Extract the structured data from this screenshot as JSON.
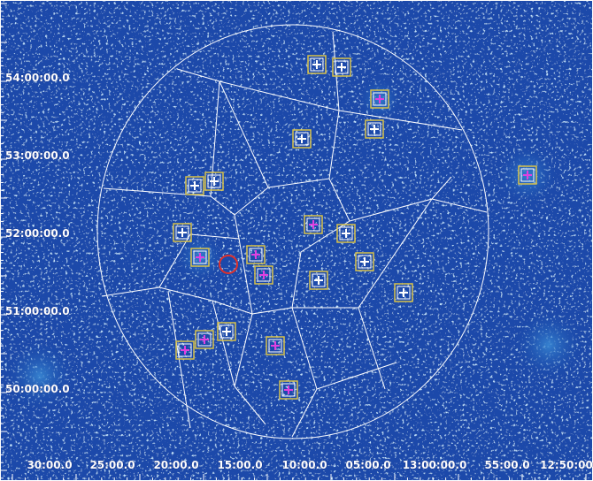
{
  "axes": {
    "y_labels": [
      "54:00:00.0",
      "53:00:00.0",
      "52:00:00.0",
      "51:00:00.0",
      "50:00:00.0"
    ],
    "x_labels": [
      "30:00.0",
      "25:00.0",
      "20:00.0",
      "15:00.0",
      "10:00.0",
      "05:00.0",
      "13:00:00.0",
      "55:00.0",
      "12:50:00"
    ]
  }
}
